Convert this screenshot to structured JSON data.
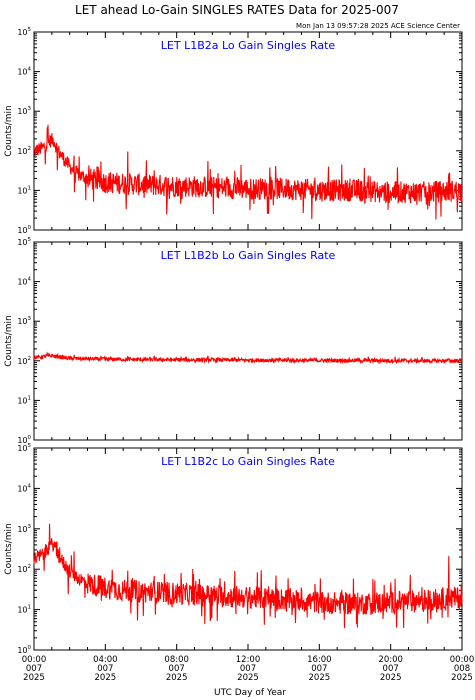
{
  "title": "LET ahead Lo-Gain SINGLES RATES Data for 2025-007",
  "timestamp": "Mon Jan 13 09:57:28 2025 ACE Science Center",
  "xlabel": "UTC Day of Year",
  "ylabel": "Counts/min",
  "colors": {
    "series": "#ff0000",
    "panel_label": "#0000ff",
    "axes": "#000000",
    "background": "#ffffff"
  },
  "x_ticks": [
    {
      "time": "00:00",
      "doy": "007",
      "year": "2025"
    },
    {
      "time": "04:00",
      "doy": "007",
      "year": "2025"
    },
    {
      "time": "08:00",
      "doy": "007",
      "year": "2025"
    },
    {
      "time": "12:00",
      "doy": "007",
      "year": "2025"
    },
    {
      "time": "16:00",
      "doy": "007",
      "year": "2025"
    },
    {
      "time": "20:00",
      "doy": "007",
      "year": "2025"
    },
    {
      "time": "00:00",
      "doy": "008",
      "year": "2025"
    }
  ],
  "chart_data": [
    {
      "type": "line",
      "label": "LET L1B2a Lo Gain Singles Rate",
      "x_unit": "hours since 2025-007 00:00",
      "xlim": [
        0,
        24
      ],
      "yscale": "log",
      "ylim": [
        1,
        100000
      ],
      "y_ticks": [
        "10^0",
        "10^1",
        "10^2",
        "10^3",
        "10^4",
        "10^5"
      ],
      "series": [
        {
          "color": "#ff0000",
          "x": [
            0,
            0.5,
            0.9,
            1.1,
            1.3,
            1.6,
            2,
            2.5,
            3,
            4,
            5,
            6,
            8,
            10,
            12,
            14,
            16,
            18,
            20,
            22,
            24
          ],
          "y": [
            95,
            120,
            180,
            190,
            110,
            70,
            40,
            25,
            20,
            16,
            15,
            14,
            13,
            12,
            11,
            11,
            10,
            10,
            9,
            9,
            10
          ]
        }
      ]
    },
    {
      "type": "line",
      "label": "LET L1B2b Lo Gain Singles Rate",
      "x_unit": "hours since 2025-007 00:00",
      "xlim": [
        0,
        24
      ],
      "yscale": "log",
      "ylim": [
        1,
        100000
      ],
      "y_ticks": [
        "10^0",
        "10^1",
        "10^2",
        "10^3",
        "10^4",
        "10^5"
      ],
      "series": [
        {
          "color": "#ff0000",
          "x": [
            0,
            1,
            2,
            4,
            6,
            8,
            10,
            12,
            14,
            16,
            18,
            20,
            22,
            24
          ],
          "y": [
            120,
            135,
            115,
            110,
            108,
            106,
            105,
            104,
            103,
            102,
            102,
            101,
            100,
            100
          ]
        }
      ]
    },
    {
      "type": "line",
      "label": "LET L1B2c Lo Gain Singles Rate",
      "x_unit": "hours since 2025-007 00:00",
      "xlim": [
        0,
        24
      ],
      "yscale": "log",
      "ylim": [
        1,
        100000
      ],
      "y_ticks": [
        "10^0",
        "10^1",
        "10^2",
        "10^3",
        "10^4",
        "10^5"
      ],
      "series": [
        {
          "color": "#ff0000",
          "x": [
            0,
            0.5,
            0.9,
            1.1,
            1.3,
            1.6,
            2,
            2.5,
            3,
            4,
            5,
            6,
            8,
            10,
            12,
            14,
            16,
            18,
            20,
            22,
            24
          ],
          "y": [
            180,
            230,
            380,
            420,
            250,
            150,
            90,
            60,
            45,
            35,
            30,
            28,
            25,
            22,
            20,
            18,
            15,
            14,
            15,
            17,
            20
          ]
        }
      ]
    }
  ]
}
